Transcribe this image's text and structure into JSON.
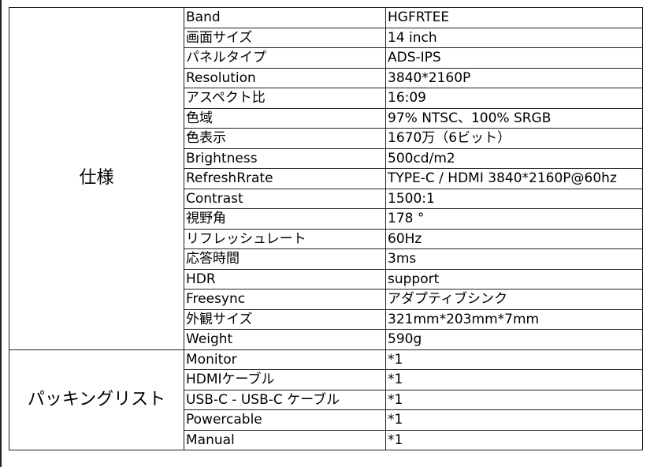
{
  "groups": [
    {
      "label": "仕様",
      "rows": [
        [
          "Band",
          "HGFRTEE"
        ],
        [
          "画面サイズ",
          "14 inch"
        ],
        [
          "パネルタイプ",
          "ADS-IPS"
        ],
        [
          "Resolution",
          "3840*2160P"
        ],
        [
          "アスペクト比",
          "16:09"
        ],
        [
          "色域",
          "97% NTSC、100% SRGB"
        ],
        [
          "色表示",
          "1670万（6ビット）"
        ],
        [
          "Brightness",
          "500cd/m2"
        ],
        [
          "RefreshRrate",
          "TYPE-C / HDMI  3840*2160P@60hz"
        ],
        [
          "Contrast",
          "1500:1"
        ],
        [
          "視野角",
          "178 °"
        ],
        [
          "リフレッシュレート",
          "60Hz"
        ],
        [
          "応答時間",
          "3ms"
        ],
        [
          "HDR",
          "support"
        ],
        [
          "Freesync",
          "アダプティブシンク"
        ],
        [
          "外観サイズ",
          "321mm*203mm*7mm"
        ],
        [
          "Weight",
          "590g"
        ]
      ]
    },
    {
      "label": "パッキングリスト",
      "rows": [
        [
          "Monitor",
          "*1"
        ],
        [
          "HDMIケーブル",
          "*1"
        ],
        [
          "USB-C - USB-C ケーブル",
          "*1"
        ],
        [
          "Powercable",
          "*1"
        ],
        [
          "Manual",
          "*1"
        ]
      ]
    }
  ]
}
